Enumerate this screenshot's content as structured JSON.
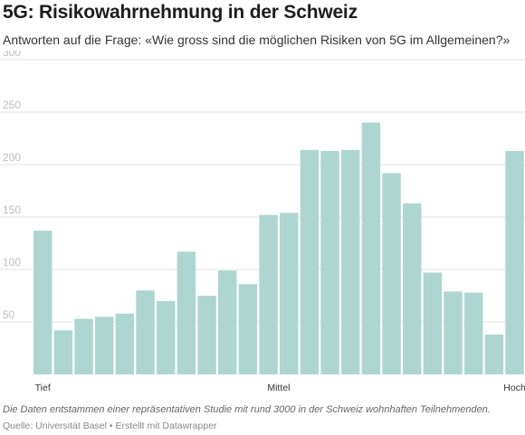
{
  "title": "5G: Risikowahrnehmung in der Schweiz",
  "subtitle": "Antworten auf die Frage: «Wie gross sind die möglichen Risiken von 5G im Allgemeinen?»",
  "note": "Die Daten entstammen einer repräsentativen Studie mit rund 3000 in der Schweiz wohnhaften Teilnehmenden.",
  "source": {
    "label": "Quelle: Universität Basel",
    "separator": "•",
    "credit": "Erstellt mit Datawrapper"
  },
  "chart_data": {
    "type": "bar",
    "title": "5G: Risikowahrnehmung in der Schweiz",
    "subtitle": "Antworten auf die Frage: «Wie gross sind die möglichen Risiken von 5G im Allgemeinen?»",
    "xlabel": "",
    "ylabel": "",
    "ylim": [
      0,
      300
    ],
    "yticks": [
      50,
      100,
      150,
      200,
      250,
      300
    ],
    "grid": true,
    "legend": "none",
    "bar_color": "#aed6d0",
    "grid_color": "#e2e2e2",
    "x_axis_labels": [
      {
        "label": "Tief",
        "at_index": 0
      },
      {
        "label": "Mittel",
        "at_index": 11.5
      },
      {
        "label": "Hoch",
        "at_index": 23
      }
    ],
    "values": [
      137,
      42,
      53,
      55,
      58,
      80,
      70,
      117,
      75,
      99,
      86,
      152,
      154,
      214,
      213,
      214,
      240,
      192,
      163,
      97,
      79,
      78,
      38,
      213
    ]
  }
}
